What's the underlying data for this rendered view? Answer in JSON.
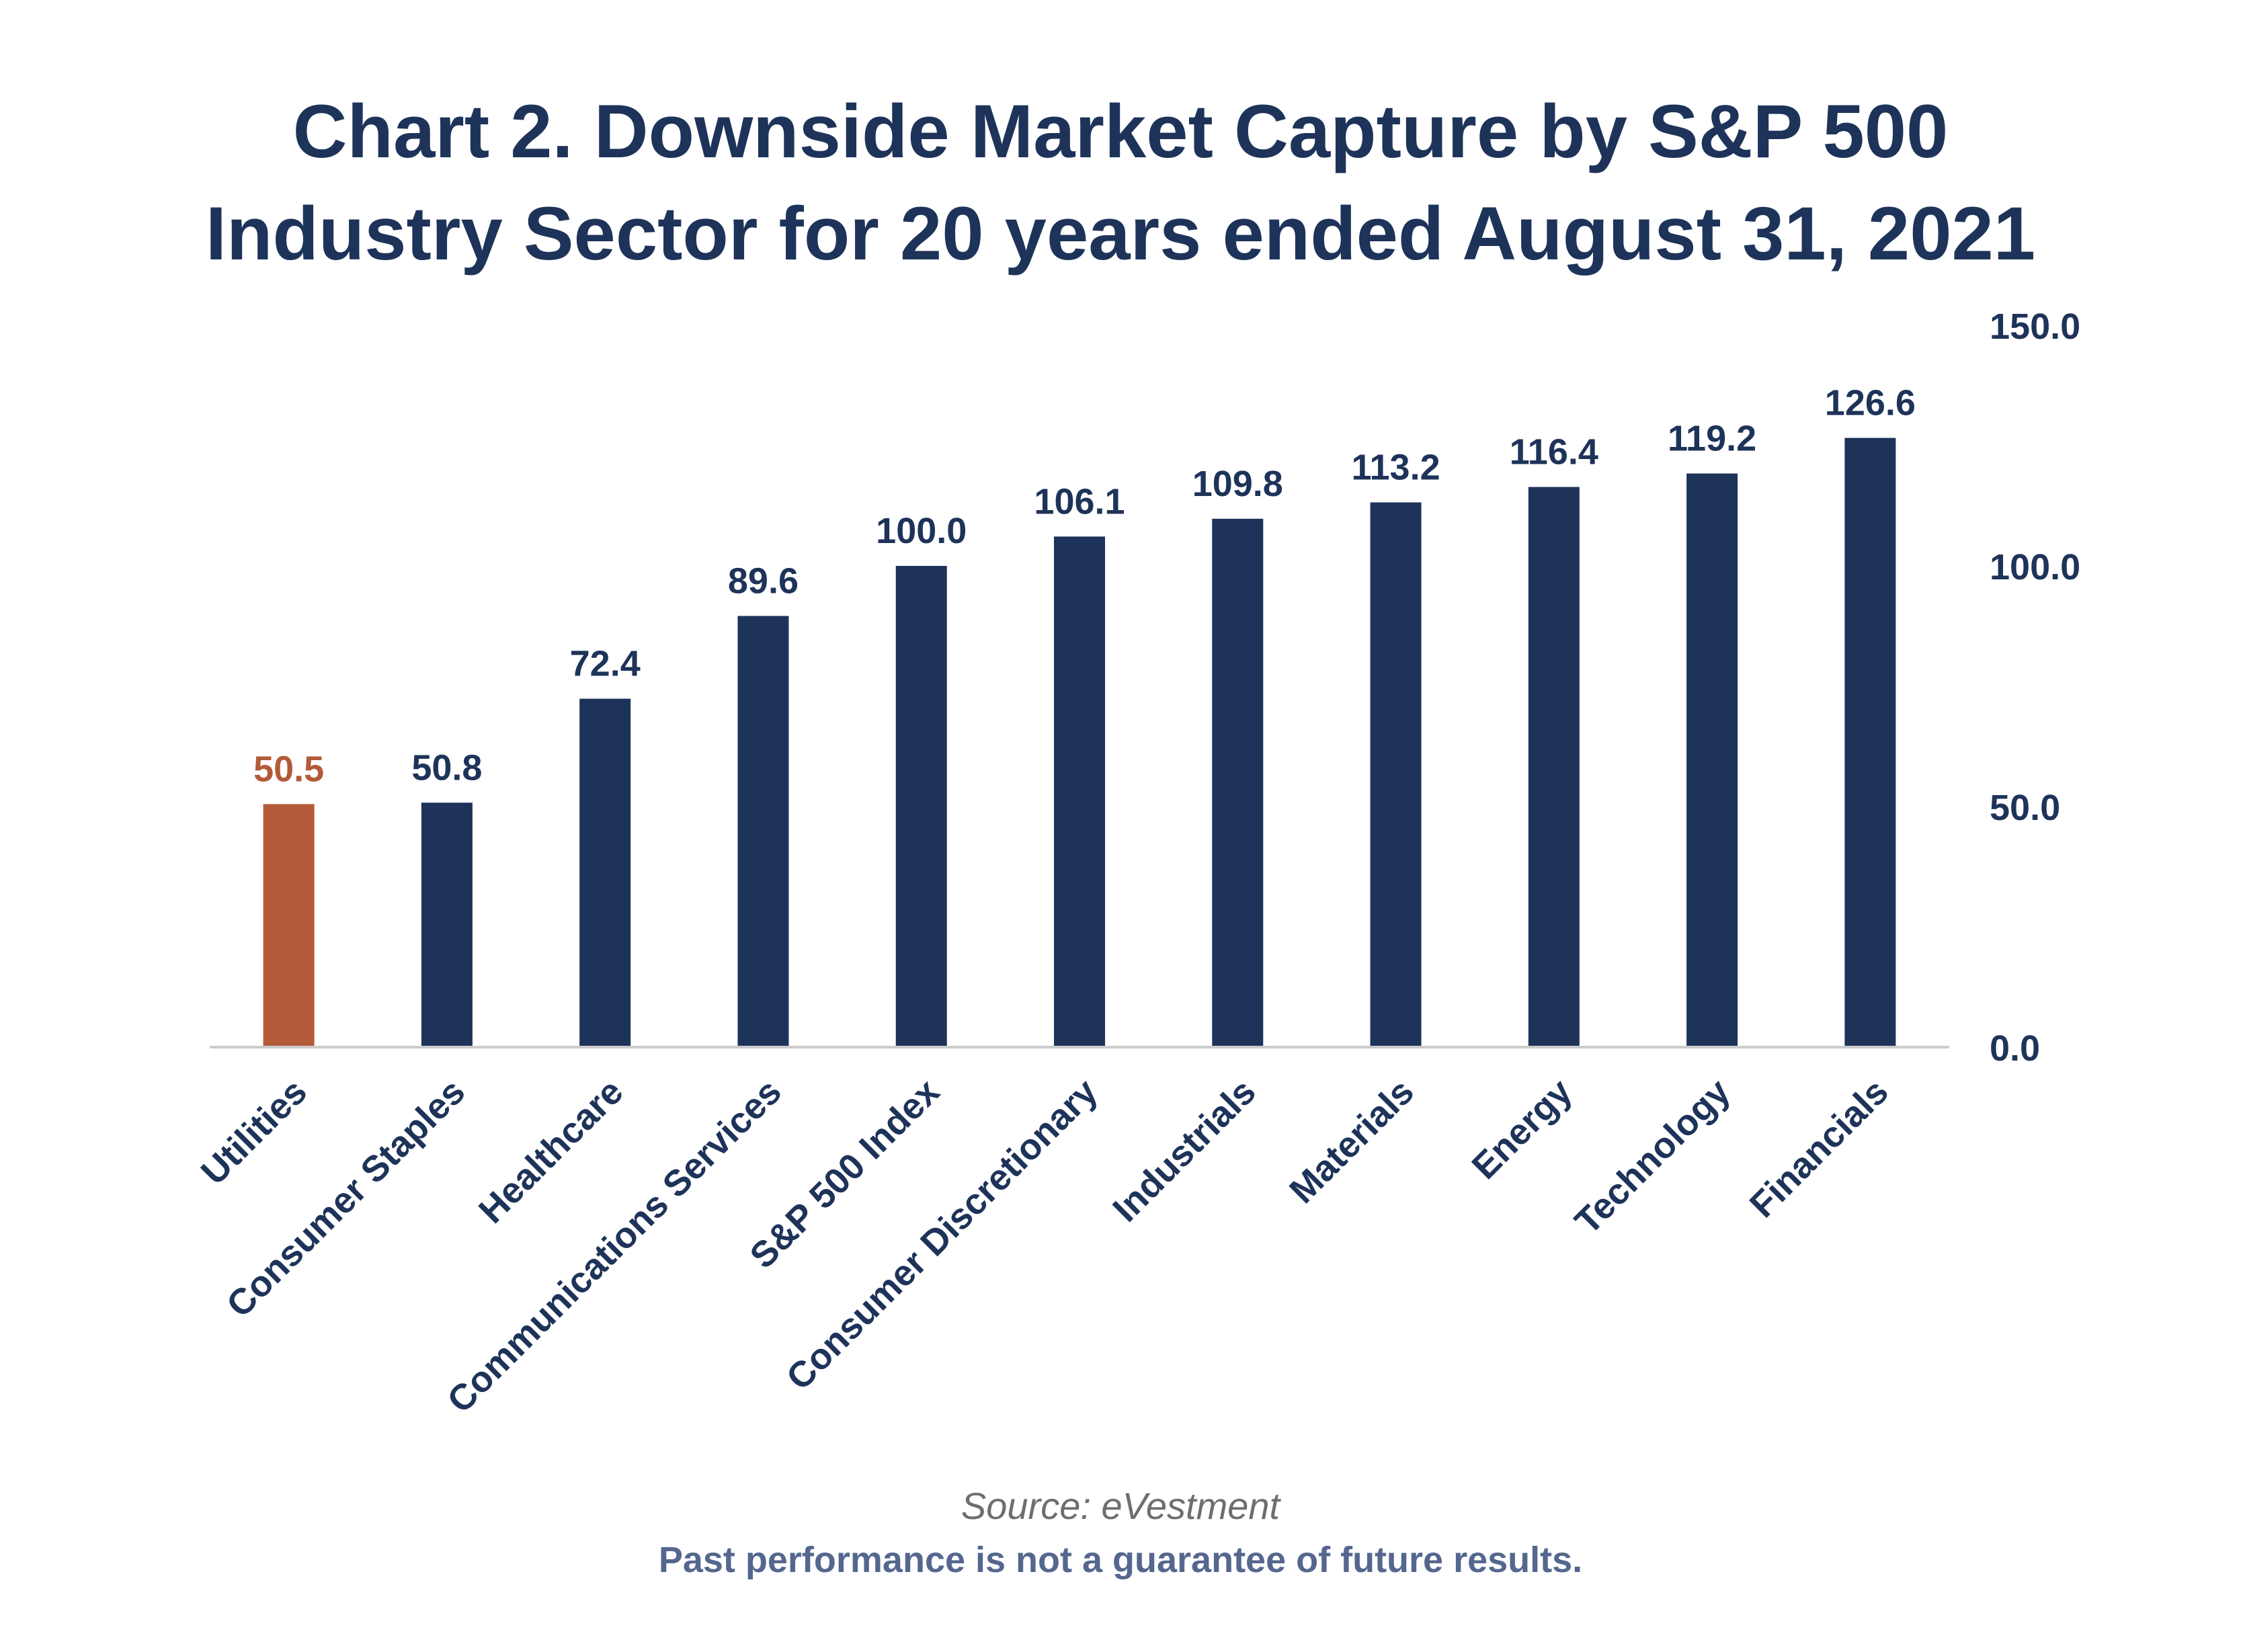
{
  "colors": {
    "bar": "#1e3359",
    "highlight": "#b35a38",
    "text": "#1e3359",
    "axis": "#cccccc"
  },
  "chart_data": {
    "type": "bar",
    "title": "Chart 2. Downside Market Capture by S&P 500 Industry Sector for 20 years ended August 31, 2021",
    "title_lines": [
      "Chart 2. Downside Market Capture by S&P 500",
      "Industry Sector for 20 years ended August 31, 2021"
    ],
    "categories": [
      "Utilities",
      "Consumer Staples",
      "Healthcare",
      "Communications Services",
      "S&P 500 Index",
      "Consumer Discretionary",
      "Industrials",
      "Materials",
      "Energy",
      "Technology",
      "Financials"
    ],
    "values": [
      50.5,
      50.8,
      72.4,
      89.6,
      100.0,
      106.1,
      109.8,
      113.2,
      116.4,
      119.2,
      126.6
    ],
    "value_labels": [
      "50.5",
      "50.8",
      "72.4",
      "89.6",
      "100.0",
      "106.1",
      "109.8",
      "113.2",
      "116.4",
      "119.2",
      "126.6"
    ],
    "highlight_index": 0,
    "ylim": [
      0,
      150
    ],
    "y_ticks": [
      0,
      50,
      100,
      150
    ],
    "y_tick_labels": [
      "0.0",
      "50.0",
      "100.0",
      "150.0"
    ],
    "y_axis_side": "right",
    "grid": false,
    "xlabel": "",
    "ylabel": ""
  },
  "footer": {
    "source": "Source: eVestment",
    "disclaimer": "Past performance is not a guarantee of future results."
  }
}
